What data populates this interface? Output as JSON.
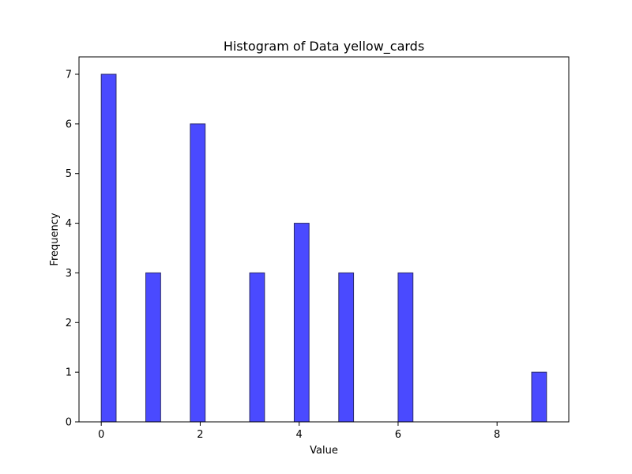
{
  "chart_data": {
    "type": "bar",
    "title": "Histogram of Data yellow_cards",
    "xlabel": "Value",
    "ylabel": "Frequency",
    "xlim": [
      -0.45,
      9.45
    ],
    "ylim": [
      0,
      7.35
    ],
    "xticks": [
      0,
      2,
      4,
      6,
      8
    ],
    "yticks": [
      0,
      1,
      2,
      3,
      4,
      5,
      6,
      7
    ],
    "bins": [
      {
        "start": 0.0,
        "end": 0.3,
        "count": 7
      },
      {
        "start": 0.9,
        "end": 1.2,
        "count": 3
      },
      {
        "start": 1.8,
        "end": 2.1,
        "count": 6
      },
      {
        "start": 3.0,
        "end": 3.3,
        "count": 3
      },
      {
        "start": 3.9,
        "end": 4.2,
        "count": 4
      },
      {
        "start": 4.8,
        "end": 5.1,
        "count": 3
      },
      {
        "start": 6.0,
        "end": 6.3,
        "count": 3
      },
      {
        "start": 8.7,
        "end": 9.0,
        "count": 1
      }
    ],
    "bar_color": "#4a4aff",
    "edge_color": "#2b2b6b",
    "grid": false,
    "legend": "none"
  }
}
